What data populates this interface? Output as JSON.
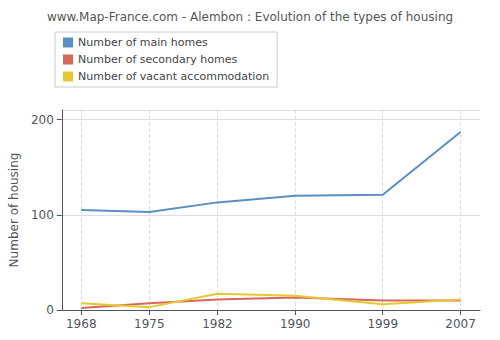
{
  "chart_data": {
    "type": "line",
    "title": "www.Map-France.com - Alembon : Evolution of the types of housing",
    "ylabel": "Number of housing",
    "x": [
      1968,
      1975,
      1982,
      1990,
      1999,
      2007
    ],
    "series": [
      {
        "name": "Number of main homes",
        "color": "#5a8fc4",
        "values": [
          105,
          103,
          113,
          120,
          121,
          187
        ]
      },
      {
        "name": "Number of secondary homes",
        "color": "#d4695a",
        "values": [
          2,
          7,
          11,
          13,
          10,
          10
        ]
      },
      {
        "name": "Number of vacant accommodation",
        "color": "#e8c830",
        "values": [
          7,
          3,
          17,
          15,
          6,
          11
        ]
      }
    ],
    "xlim": [
      1966,
      2009
    ],
    "xticks": [
      1968,
      1975,
      1982,
      1990,
      1999,
      2007
    ],
    "ylim": [
      0,
      210
    ],
    "yticks": [
      0,
      100,
      200
    ],
    "grid": true,
    "legend": "upper left"
  }
}
